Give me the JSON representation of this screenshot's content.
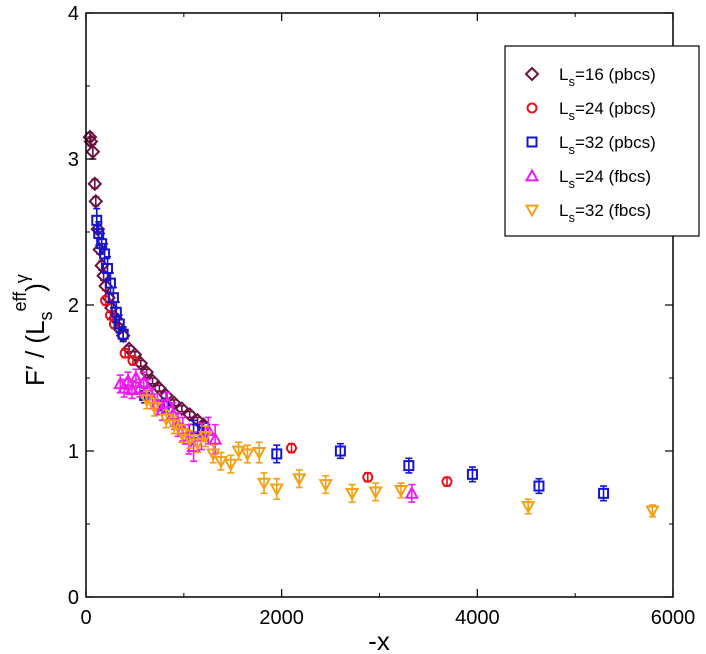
{
  "chart_data": {
    "type": "scatter",
    "title": "",
    "xlabel": "-x",
    "ylabel": {
      "main": "F′ / (L",
      "sub": "s",
      "sup_eff": "eff",
      "close": ")",
      "sup_gamma": "γ"
    },
    "xlim": [
      0,
      6000
    ],
    "ylim": [
      0,
      4
    ],
    "x_ticks": [
      0,
      2000,
      4000,
      6000
    ],
    "y_ticks": [
      0,
      1,
      2,
      3,
      4
    ],
    "x_tick_labels": [
      "0",
      "2000",
      "4000",
      "6000"
    ],
    "y_tick_labels": [
      "0",
      "1",
      "2",
      "3",
      "4"
    ],
    "grid": false,
    "legend_position": "top-right",
    "series": [
      {
        "name": "L_s=16 (pbcs)",
        "legend": {
          "prefix": "L",
          "sub": "s",
          "suffix": "=16 (pbcs)"
        },
        "marker": "diamond",
        "color": "#6b1040",
        "points": [
          [
            40,
            3.15,
            0.03
          ],
          [
            50,
            3.12,
            0.03
          ],
          [
            70,
            3.05,
            0.05
          ],
          [
            90,
            2.83,
            0.03
          ],
          [
            100,
            2.71,
            0.03
          ],
          [
            120,
            2.52,
            0.03
          ],
          [
            140,
            2.38,
            0.03
          ],
          [
            160,
            2.27,
            0.03
          ],
          [
            180,
            2.2,
            0.03
          ],
          [
            200,
            2.13,
            0.03
          ],
          [
            230,
            2.05,
            0.03
          ],
          [
            260,
            1.98,
            0.03
          ],
          [
            300,
            1.91,
            0.03
          ],
          [
            340,
            1.84,
            0.03
          ],
          [
            380,
            1.79,
            0.03
          ],
          [
            440,
            1.7,
            0.02
          ],
          [
            500,
            1.66,
            0.02
          ],
          [
            560,
            1.6,
            0.02
          ],
          [
            620,
            1.54,
            0.02
          ],
          [
            680,
            1.48,
            0.02
          ],
          [
            750,
            1.43,
            0.02
          ],
          [
            820,
            1.38,
            0.02
          ],
          [
            900,
            1.33,
            0.02
          ],
          [
            980,
            1.29,
            0.02
          ],
          [
            1060,
            1.25,
            0.02
          ],
          [
            1140,
            1.21,
            0.02
          ],
          [
            1200,
            1.18,
            0.02
          ]
        ]
      },
      {
        "name": "L_s=24 (pbcs)",
        "legend": {
          "prefix": "L",
          "sub": "s",
          "suffix": "=24 (pbcs)"
        },
        "marker": "circle",
        "color": "#e8101a",
        "points": [
          [
            200,
            2.03,
            0.03
          ],
          [
            250,
            1.93,
            0.03
          ],
          [
            290,
            1.87,
            0.03
          ],
          [
            400,
            1.67,
            0.03
          ],
          [
            480,
            1.62,
            0.03
          ],
          [
            2100,
            1.02,
            0.03
          ],
          [
            2880,
            0.82,
            0.03
          ],
          [
            3690,
            0.79,
            0.03
          ]
        ]
      },
      {
        "name": "L_s=32 (pbcs)",
        "legend": {
          "prefix": "L",
          "sub": "s",
          "suffix": "=32 (pbcs)"
        },
        "marker": "square",
        "color": "#1414d2",
        "points": [
          [
            110,
            2.58,
            0.08
          ],
          [
            130,
            2.49,
            0.08
          ],
          [
            160,
            2.42,
            0.07
          ],
          [
            190,
            2.35,
            0.07
          ],
          [
            220,
            2.25,
            0.08
          ],
          [
            250,
            2.15,
            0.07
          ],
          [
            280,
            2.05,
            0.07
          ],
          [
            310,
            1.95,
            0.07
          ],
          [
            340,
            1.87,
            0.06
          ],
          [
            380,
            1.8,
            0.05
          ],
          [
            600,
            1.38,
            0.05
          ],
          [
            800,
            1.31,
            0.05
          ],
          [
            1100,
            1.15,
            0.06
          ],
          [
            1200,
            1.13,
            0.06
          ],
          [
            1950,
            0.98,
            0.06
          ],
          [
            2600,
            1.0,
            0.05
          ],
          [
            3300,
            0.9,
            0.05
          ],
          [
            3950,
            0.84,
            0.05
          ],
          [
            4630,
            0.76,
            0.05
          ],
          [
            5290,
            0.71,
            0.05
          ]
        ]
      },
      {
        "name": "L_s=24 (fbcs)",
        "legend": {
          "prefix": "L",
          "sub": "s",
          "suffix": "=24 (fbcs)"
        },
        "marker": "triangle-up",
        "color": "#ee1aee",
        "points": [
          [
            350,
            1.46,
            0.06
          ],
          [
            390,
            1.43,
            0.06
          ],
          [
            430,
            1.48,
            0.06
          ],
          [
            470,
            1.42,
            0.06
          ],
          [
            510,
            1.5,
            0.06
          ],
          [
            550,
            1.43,
            0.06
          ],
          [
            590,
            1.47,
            0.07
          ],
          [
            630,
            1.42,
            0.07
          ],
          [
            680,
            1.36,
            0.07
          ],
          [
            730,
            1.32,
            0.07
          ],
          [
            780,
            1.28,
            0.07
          ],
          [
            830,
            1.33,
            0.07
          ],
          [
            890,
            1.25,
            0.08
          ],
          [
            940,
            1.18,
            0.08
          ],
          [
            990,
            1.15,
            0.08
          ],
          [
            1050,
            1.08,
            0.1
          ],
          [
            1100,
            1.03,
            0.1
          ],
          [
            1180,
            1.1,
            0.09
          ],
          [
            1250,
            1.14,
            0.09
          ],
          [
            1320,
            1.08,
            0.1
          ],
          [
            3330,
            0.71,
            0.06
          ]
        ]
      },
      {
        "name": "L_s=32 (fbcs)",
        "legend": {
          "prefix": "L",
          "sub": "s",
          "suffix": "=32 (fbcs)"
        },
        "marker": "triangle-down",
        "color": "#f4a014",
        "points": [
          [
            620,
            1.35,
            0.06
          ],
          [
            700,
            1.3,
            0.06
          ],
          [
            820,
            1.22,
            0.06
          ],
          [
            900,
            1.18,
            0.06
          ],
          [
            980,
            1.12,
            0.06
          ],
          [
            1060,
            1.08,
            0.06
          ],
          [
            1140,
            1.05,
            0.06
          ],
          [
            1220,
            1.1,
            0.07
          ],
          [
            1300,
            0.98,
            0.06
          ],
          [
            1380,
            0.93,
            0.06
          ],
          [
            1480,
            0.91,
            0.06
          ],
          [
            1560,
            1.0,
            0.06
          ],
          [
            1650,
            0.98,
            0.06
          ],
          [
            1770,
            0.99,
            0.07
          ],
          [
            1820,
            0.78,
            0.07
          ],
          [
            1950,
            0.74,
            0.07
          ],
          [
            2180,
            0.81,
            0.06
          ],
          [
            2450,
            0.77,
            0.06
          ],
          [
            2720,
            0.71,
            0.06
          ],
          [
            2960,
            0.72,
            0.06
          ],
          [
            3220,
            0.73,
            0.05
          ],
          [
            4520,
            0.62,
            0.05
          ],
          [
            5790,
            0.59,
            0.04
          ]
        ]
      }
    ]
  }
}
